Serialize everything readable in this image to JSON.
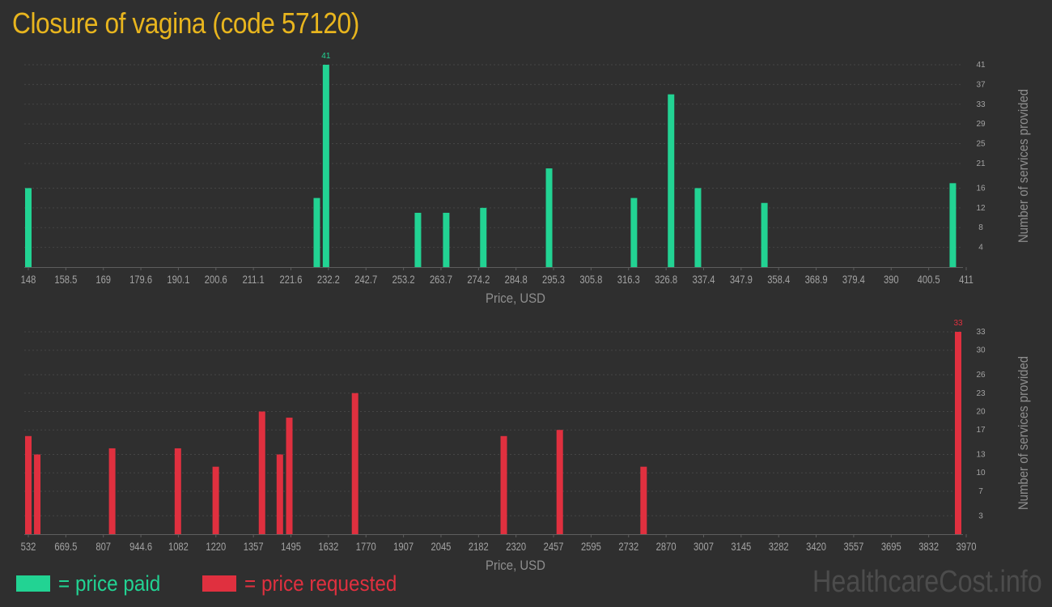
{
  "title": "Closure of vagina (code 57120)",
  "watermark": "HealthcareCost.info",
  "legend": {
    "paid": {
      "label": "= price paid",
      "color": "#22d393"
    },
    "requested": {
      "label": "= price requested",
      "color": "#e0303f"
    }
  },
  "colors": {
    "grid": "#454545",
    "axis": "#5e5e5e",
    "tick_text": "#a3a3a3",
    "label_text": "#8e8e8e"
  },
  "chart_data": [
    {
      "type": "bar",
      "name": "paid",
      "color": "#22d393",
      "xlabel": "Price, USD",
      "ylabel": "Number of services provided",
      "xlim": [
        148,
        411
      ],
      "ylim": [
        0,
        41
      ],
      "x_ticks": [
        "148",
        "158.5",
        "169",
        "179.6",
        "190.1",
        "200.6",
        "211.1",
        "221.6",
        "232.2",
        "242.7",
        "253.2",
        "263.7",
        "274.2",
        "284.8",
        "295.3",
        "305.8",
        "316.3",
        "326.8",
        "337.4",
        "347.9",
        "358.4",
        "368.9",
        "379.4",
        "390",
        "400.5",
        "411"
      ],
      "y_ticks": [
        4,
        8,
        12,
        16,
        21,
        25,
        29,
        33,
        37,
        41
      ],
      "max_label": "41",
      "points": [
        {
          "x": 148,
          "y": 16
        },
        {
          "x": 229.6,
          "y": 14
        },
        {
          "x": 232.2,
          "y": 41
        },
        {
          "x": 258.2,
          "y": 11
        },
        {
          "x": 266.2,
          "y": 11
        },
        {
          "x": 276.7,
          "y": 12
        },
        {
          "x": 295.3,
          "y": 20
        },
        {
          "x": 319.3,
          "y": 14
        },
        {
          "x": 329.8,
          "y": 35
        },
        {
          "x": 337.4,
          "y": 16
        },
        {
          "x": 356.2,
          "y": 13
        },
        {
          "x": 409.5,
          "y": 17
        }
      ]
    },
    {
      "type": "bar",
      "name": "requested",
      "color": "#e0303f",
      "xlabel": "Price, USD",
      "ylabel": "Number of services provided",
      "xlim": [
        532,
        3970
      ],
      "ylim": [
        0,
        33
      ],
      "x_ticks": [
        "532",
        "669.5",
        "807",
        "944.6",
        "1082",
        "1220",
        "1357",
        "1495",
        "1632",
        "1770",
        "1907",
        "2045",
        "2182",
        "2320",
        "2457",
        "2595",
        "2732",
        "2870",
        "3007",
        "3145",
        "3282",
        "3420",
        "3557",
        "3695",
        "3832",
        "3970"
      ],
      "y_ticks": [
        3,
        7,
        10,
        13,
        17,
        20,
        23,
        26,
        30,
        33
      ],
      "max_label": "33",
      "points": [
        {
          "x": 532,
          "y": 16
        },
        {
          "x": 565,
          "y": 13
        },
        {
          "x": 842,
          "y": 14
        },
        {
          "x": 1085,
          "y": 14
        },
        {
          "x": 1225,
          "y": 11
        },
        {
          "x": 1396,
          "y": 20
        },
        {
          "x": 1462,
          "y": 13
        },
        {
          "x": 1497,
          "y": 19
        },
        {
          "x": 1740,
          "y": 23
        },
        {
          "x": 2290,
          "y": 16
        },
        {
          "x": 2497,
          "y": 17
        },
        {
          "x": 2807,
          "y": 11
        },
        {
          "x": 3970,
          "y": 33
        }
      ]
    }
  ]
}
